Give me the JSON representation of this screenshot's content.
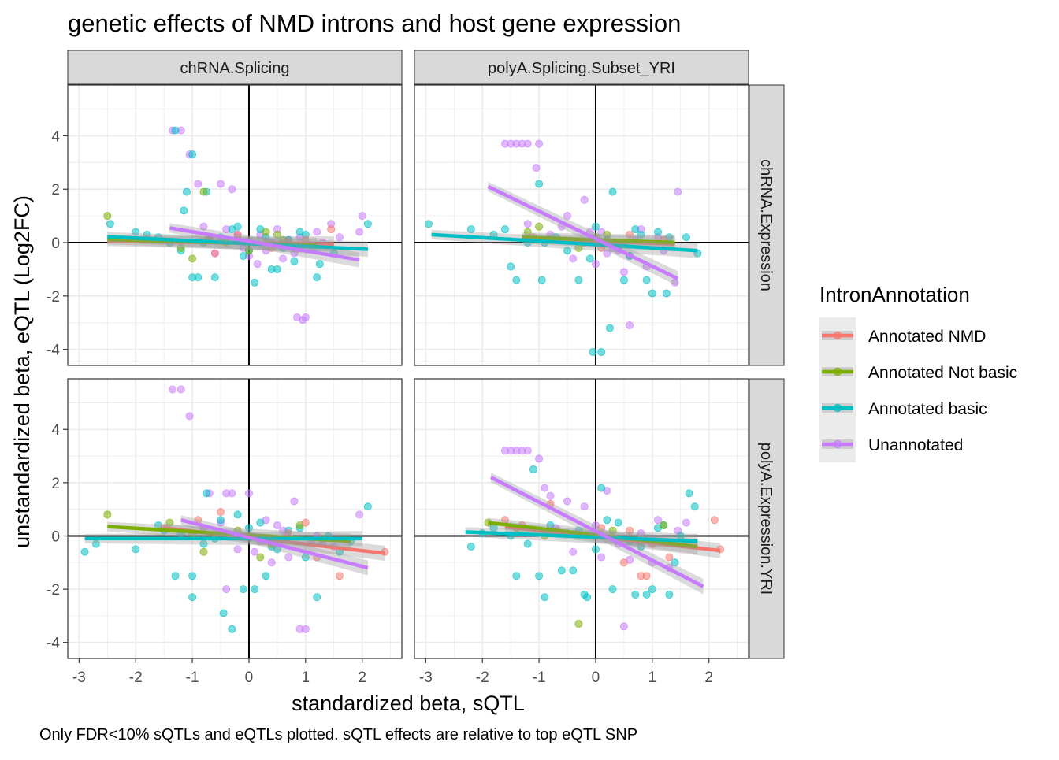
{
  "chart_data": {
    "type": "scatter",
    "title": "genetic effects of NMD introns and host gene expression",
    "xlabel": "standardized beta, sQTL",
    "ylabel": "unstandardized beta, eQTL (Log2FC)",
    "caption": "Only FDR<10% sQTLs and eQTLs plotted. sQTL effects are relative to top eQTL SNP",
    "xlim": [
      -3.2,
      2.7
    ],
    "xticks": [
      -3,
      -2,
      -1,
      0,
      1,
      2
    ],
    "yticks": [
      -4,
      -2,
      0,
      2,
      4
    ],
    "grid": true,
    "legend": {
      "title": "IntronAnnotation",
      "placement": "right",
      "entries": [
        {
          "name": "Annotated NMD",
          "color": "#F8766D"
        },
        {
          "name": "Annotated Not basic",
          "color": "#7CAE00"
        },
        {
          "name": "Annotated basic",
          "color": "#00BFC4"
        },
        {
          "name": "Unannotated",
          "color": "#C77CFF"
        }
      ]
    },
    "col_facets": [
      "chRNA.Splicing",
      "polyA.Splicing.Subset_YRI"
    ],
    "row_facets": [
      "chRNA.Expression",
      "polyA.Expression.YRI"
    ],
    "row_ylim": [
      [
        -4.6,
        5.9
      ],
      [
        -4.6,
        5.9
      ]
    ],
    "panels": [
      {
        "col": 0,
        "row": 0,
        "fits": [
          {
            "series": "Annotated NMD",
            "x": [
              -2.5,
              1.5
            ],
            "y": [
              0.05,
              -0.05
            ]
          },
          {
            "series": "Annotated Not basic",
            "x": [
              -2.5,
              1.2
            ],
            "y": [
              0.12,
              -0.1
            ]
          },
          {
            "series": "Annotated basic",
            "x": [
              -2.5,
              2.1
            ],
            "y": [
              0.22,
              -0.25
            ]
          },
          {
            "series": "Unannotated",
            "x": [
              -1.4,
              1.95
            ],
            "y": [
              0.55,
              -0.65
            ]
          }
        ],
        "points": [
          {
            "series": "Unannotated",
            "x": [
              -1.35,
              -1.2,
              -1.05,
              -0.9,
              -0.5,
              -0.3,
              -0.8,
              0.5,
              0.85,
              0.95,
              1.0,
              1.45,
              2.0,
              1.95,
              -0.6,
              0.2,
              -0.1,
              0.7,
              1.1,
              -0.4,
              0.3,
              0.9,
              1.3,
              -0.7,
              0.0,
              0.6,
              1.6,
              0.4,
              -0.2,
              0.15,
              1.2,
              0.8
            ],
            "y": [
              4.2,
              4.2,
              3.3,
              2.2,
              2.2,
              2.0,
              0.6,
              0.5,
              -2.8,
              -2.9,
              -2.8,
              0.7,
              1.0,
              0.4,
              -0.4,
              0.3,
              -0.2,
              0.1,
              -0.1,
              0.5,
              -0.3,
              0.2,
              0.0,
              0.1,
              -0.5,
              -0.6,
              0.2,
              0.0,
              0.3,
              -0.8,
              0.4,
              -0.4
            ]
          },
          {
            "series": "Annotated basic",
            "x": [
              -1.3,
              -1.0,
              -1.1,
              -1.15,
              -0.75,
              -0.9,
              -1.0,
              -0.6,
              -0.1,
              0.1,
              0.4,
              0.5,
              1.25,
              1.2,
              2.1,
              -2.45,
              -2.0,
              -1.8,
              -1.6,
              -1.4,
              -0.3,
              0.0,
              0.3,
              0.7,
              0.9,
              -0.5,
              0.2,
              0.6,
              1.0,
              1.5,
              -0.2,
              -1.2,
              0.8,
              -0.8
            ],
            "y": [
              4.2,
              3.3,
              1.9,
              1.2,
              1.9,
              -1.3,
              -1.3,
              -1.3,
              -0.5,
              -1.5,
              -1.0,
              -1.0,
              -0.8,
              -1.3,
              0.7,
              0.7,
              0.4,
              0.3,
              0.2,
              0.0,
              0.5,
              -0.3,
              0.2,
              0.1,
              0.4,
              0.2,
              0.5,
              -0.2,
              0.3,
              -0.4,
              0.6,
              -0.3,
              -0.7,
              0.0
            ]
          },
          {
            "series": "Annotated Not basic",
            "x": [
              -2.5,
              -0.8,
              -1.0,
              -0.7,
              0.0,
              0.3,
              0.6,
              -0.4,
              0.9,
              -1.2,
              0.5
            ],
            "y": [
              1.0,
              1.9,
              -0.6,
              0.2,
              -0.3,
              0.4,
              0.1,
              0.0,
              -0.2,
              -0.2,
              0.3
            ]
          },
          {
            "series": "Annotated NMD",
            "x": [
              -1.8,
              -0.2,
              0.4,
              1.0,
              1.45,
              -0.6,
              0.7
            ],
            "y": [
              0.1,
              0.3,
              -0.2,
              0.1,
              0.5,
              -0.4,
              0.0
            ]
          }
        ]
      },
      {
        "col": 1,
        "row": 0,
        "fits": [
          {
            "series": "Annotated NMD",
            "x": [
              -1.3,
              1.4
            ],
            "y": [
              0.15,
              -0.05
            ]
          },
          {
            "series": "Annotated Not basic",
            "x": [
              -1.3,
              1.4
            ],
            "y": [
              0.2,
              0.0
            ]
          },
          {
            "series": "Annotated basic",
            "x": [
              -2.9,
              1.8
            ],
            "y": [
              0.3,
              -0.3
            ]
          },
          {
            "series": "Unannotated",
            "x": [
              -1.9,
              1.45
            ],
            "y": [
              2.1,
              -1.35
            ]
          }
        ],
        "points": [
          {
            "series": "Unannotated",
            "x": [
              -1.6,
              -1.5,
              -1.4,
              -1.3,
              -1.2,
              -1.0,
              -1.05,
              -1.2,
              -0.5,
              -0.2,
              0.1,
              0.4,
              0.6,
              0.9,
              1.4,
              0.6,
              1.45,
              -0.8,
              -0.4,
              0.3,
              0.8,
              -0.6,
              0.0,
              0.5,
              1.1,
              -0.1,
              0.2,
              0.7,
              1.2
            ],
            "y": [
              3.7,
              3.7,
              3.7,
              3.7,
              3.7,
              3.7,
              2.8,
              0.7,
              1.0,
              1.6,
              0.4,
              -0.3,
              -3.1,
              -0.9,
              -1.5,
              -0.5,
              1.9,
              0.3,
              -0.6,
              -0.2,
              0.5,
              0.6,
              -0.8,
              -1.1,
              0.2,
              0.4,
              -0.4,
              0.1,
              -0.3
            ]
          },
          {
            "series": "Annotated basic",
            "x": [
              -2.95,
              -2.2,
              -1.8,
              -1.5,
              -1.4,
              -1.0,
              -0.95,
              -0.3,
              -0.05,
              0.1,
              0.25,
              0.3,
              0.5,
              0.9,
              1.0,
              1.25,
              1.3,
              1.8,
              -1.6,
              -1.2,
              -0.7,
              0.0,
              0.4,
              0.8,
              -0.5,
              0.2,
              0.6,
              1.1,
              1.6,
              -0.9,
              -0.1,
              0.7
            ],
            "y": [
              0.7,
              0.5,
              0.3,
              -0.9,
              -1.4,
              2.2,
              -1.4,
              -1.4,
              -4.1,
              -4.1,
              -3.2,
              1.9,
              -1.4,
              -1.4,
              -1.9,
              -1.9,
              0.2,
              -0.4,
              0.5,
              0.0,
              0.2,
              0.6,
              -0.2,
              0.3,
              -0.3,
              0.1,
              -0.5,
              0.4,
              0.2,
              0.0,
              -0.6,
              0.5
            ]
          },
          {
            "series": "Annotated Not basic",
            "x": [
              -1.2,
              -0.8,
              -0.3,
              0.2,
              0.5,
              -1.0,
              0.0
            ],
            "y": [
              0.4,
              0.1,
              -0.2,
              0.3,
              0.0,
              0.6,
              0.2
            ]
          },
          {
            "series": "Annotated NMD",
            "x": [
              -1.1,
              -0.2,
              0.6,
              1.2,
              0.1
            ],
            "y": [
              0.2,
              0.0,
              0.3,
              0.1,
              -0.2
            ]
          }
        ]
      },
      {
        "col": 0,
        "row": 1,
        "fits": [
          {
            "series": "Annotated NMD",
            "x": [
              -1.5,
              2.4
            ],
            "y": [
              0.3,
              -0.65
            ]
          },
          {
            "series": "Annotated Not basic",
            "x": [
              -2.5,
              1.8
            ],
            "y": [
              0.35,
              -0.2
            ]
          },
          {
            "series": "Annotated basic",
            "x": [
              -2.9,
              2.0
            ],
            "y": [
              -0.1,
              -0.1
            ]
          },
          {
            "series": "Unannotated",
            "x": [
              -1.2,
              2.1
            ],
            "y": [
              0.6,
              -1.2
            ]
          }
        ],
        "points": [
          {
            "series": "Unannotated",
            "x": [
              -1.35,
              -1.2,
              -1.05,
              -0.7,
              -0.4,
              -0.3,
              0.0,
              -0.4,
              0.9,
              1.0,
              0.8,
              1.95,
              1.1,
              0.5,
              -0.2,
              0.3,
              0.7,
              1.3,
              -0.8,
              0.1,
              0.6,
              1.5,
              -0.5,
              0.2,
              0.4,
              1.2
            ],
            "y": [
              5.5,
              5.5,
              4.5,
              1.6,
              1.6,
              1.6,
              1.6,
              -2.0,
              -3.5,
              -3.5,
              1.3,
              0.8,
              -0.2,
              0.4,
              -0.5,
              0.6,
              -0.8,
              -0.3,
              0.3,
              -0.6,
              0.2,
              -0.4,
              0.5,
              -0.2,
              -1.0,
              0.0
            ]
          },
          {
            "series": "Annotated basic",
            "x": [
              -2.9,
              -2.7,
              -1.3,
              -1.0,
              -1.0,
              -0.75,
              -0.45,
              -0.3,
              -0.1,
              0.1,
              0.3,
              1.2,
              2.1,
              -2.0,
              -1.6,
              -1.2,
              -0.8,
              -0.5,
              0.0,
              0.4,
              0.7,
              1.0,
              1.4,
              1.8,
              -1.5,
              -0.2,
              0.5,
              0.9,
              -0.6,
              0.2,
              1.6
            ],
            "y": [
              -0.6,
              -0.3,
              -1.5,
              -1.5,
              -2.3,
              1.6,
              -2.9,
              -3.5,
              -2.0,
              -2.0,
              -1.5,
              -2.3,
              1.1,
              -0.5,
              0.4,
              0.1,
              -0.3,
              0.6,
              0.3,
              -0.4,
              0.2,
              -0.8,
              0.0,
              -0.2,
              0.2,
              0.8,
              -0.5,
              0.3,
              -0.1,
              0.5,
              -0.6
            ]
          },
          {
            "series": "Annotated Not basic",
            "x": [
              -2.5,
              -1.4,
              -0.8,
              -0.2,
              0.4,
              0.9,
              -1.0,
              0.2,
              1.3
            ],
            "y": [
              0.8,
              0.5,
              -0.6,
              0.2,
              -0.3,
              0.4,
              0.1,
              -0.8,
              -0.1
            ]
          },
          {
            "series": "Annotated NMD",
            "x": [
              -1.5,
              -0.5,
              0.3,
              1.0,
              1.2,
              1.6,
              2.4,
              0.7,
              -0.9
            ],
            "y": [
              0.3,
              0.9,
              -0.2,
              0.5,
              -0.8,
              -1.5,
              -0.6,
              0.1,
              0.6
            ]
          }
        ]
      },
      {
        "col": 1,
        "row": 1,
        "fits": [
          {
            "series": "Annotated NMD",
            "x": [
              -1.6,
              2.2
            ],
            "y": [
              0.35,
              -0.55
            ]
          },
          {
            "series": "Annotated Not basic",
            "x": [
              -1.9,
              1.8
            ],
            "y": [
              0.5,
              -0.4
            ]
          },
          {
            "series": "Annotated basic",
            "x": [
              -2.3,
              1.8
            ],
            "y": [
              0.15,
              -0.2
            ]
          },
          {
            "series": "Unannotated",
            "x": [
              -1.85,
              1.9
            ],
            "y": [
              2.2,
              -1.9
            ]
          }
        ],
        "points": [
          {
            "series": "Unannotated",
            "x": [
              -1.6,
              -1.5,
              -1.4,
              -1.3,
              -1.2,
              -1.0,
              -0.9,
              -0.8,
              -0.5,
              -0.2,
              0.2,
              0.5,
              1.0,
              1.3,
              0.6,
              1.45,
              -0.4,
              0.0,
              0.4,
              0.8,
              1.6,
              -0.7,
              0.1,
              0.7,
              1.1
            ],
            "y": [
              3.2,
              3.2,
              3.2,
              3.2,
              3.2,
              2.9,
              1.8,
              1.5,
              1.3,
              1.1,
              1.7,
              -3.4,
              -1.0,
              -1.2,
              -0.9,
              0.2,
              -0.6,
              0.4,
              -0.3,
              0.1,
              0.5,
              0.3,
              -0.8,
              -0.2,
              0.6
            ]
          },
          {
            "series": "Annotated basic",
            "x": [
              -2.2,
              -2.0,
              -1.4,
              -1.0,
              -0.9,
              -0.6,
              -0.4,
              -0.2,
              -0.15,
              0.1,
              0.3,
              0.7,
              0.9,
              1.0,
              1.3,
              1.4,
              1.65,
              1.75,
              -1.8,
              -1.5,
              -1.2,
              -0.8,
              -0.5,
              0.0,
              0.4,
              0.6,
              1.1,
              1.5,
              -1.1,
              0.2,
              0.8,
              -0.3,
              1.2
            ],
            "y": [
              -0.4,
              0.1,
              -1.5,
              -1.5,
              -2.3,
              -1.3,
              -1.3,
              -2.2,
              -2.3,
              1.8,
              -2.0,
              -2.2,
              -2.2,
              -2.0,
              -2.2,
              -1.0,
              1.6,
              1.1,
              0.3,
              0.0,
              -0.3,
              0.4,
              0.1,
              -0.5,
              0.5,
              -0.2,
              0.3,
              0.0,
              2.5,
              0.6,
              -0.4,
              0.2,
              0.4
            ]
          },
          {
            "series": "Annotated Not basic",
            "x": [
              -1.9,
              -1.4,
              -0.3,
              0.3,
              0.8,
              -0.9,
              1.2
            ],
            "y": [
              0.5,
              0.3,
              -3.3,
              0.2,
              -0.2,
              0.0,
              0.4
            ]
          },
          {
            "series": "Annotated NMD",
            "x": [
              -1.6,
              -1.3,
              -0.8,
              0.1,
              0.5,
              0.8,
              0.9,
              1.3,
              2.1,
              2.2,
              1.0,
              0.6
            ],
            "y": [
              0.6,
              0.4,
              1.2,
              0.3,
              -1.0,
              -1.5,
              -1.5,
              -0.8,
              0.6,
              -0.5,
              -0.3,
              0.2
            ]
          }
        ]
      }
    ]
  }
}
